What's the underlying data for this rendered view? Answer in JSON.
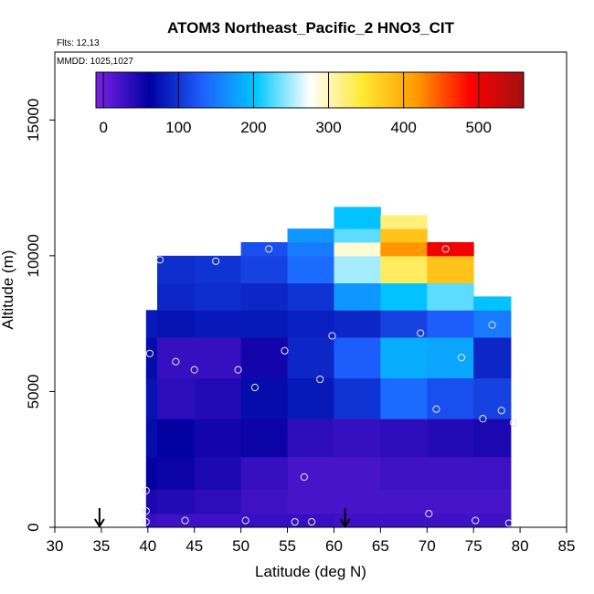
{
  "chart_data": {
    "type": "heatmap",
    "title": "ATOM3 Northeast_Pacific_2 HNO3_CIT",
    "annotations": [
      "Flts: 12,13",
      "MMDD: 1025,1027"
    ],
    "xlabel": "Latitude (deg N)",
    "ylabel": "Altitude (m)",
    "xlim": [
      30,
      85
    ],
    "ylim": [
      0,
      17500
    ],
    "x_ticks": [
      30,
      35,
      40,
      45,
      50,
      55,
      60,
      65,
      70,
      75,
      80,
      85
    ],
    "y_ticks": [
      0,
      5000,
      10000,
      15000
    ],
    "grid": false,
    "colorbar": {
      "ticks": [
        0,
        100,
        200,
        300,
        400,
        500
      ],
      "range": [
        -10,
        560
      ],
      "placement": "top-inside",
      "colors": [
        "#7a22e8",
        "#0000a0",
        "#1e60ff",
        "#00c8ff",
        "#ffffff",
        "#ffe830",
        "#ff9a00",
        "#ff0000",
        "#a01010"
      ]
    },
    "arrows_at_latitude": [
      34.8,
      61.2
    ],
    "columns": [
      {
        "x0": 39.8,
        "x1": 41.0,
        "rows": [
          [
            0,
            500,
            30
          ],
          [
            500,
            1400,
            45
          ],
          [
            1400,
            2600,
            60
          ],
          [
            2600,
            4000,
            70
          ],
          [
            4000,
            5500,
            75
          ],
          [
            5500,
            7000,
            70
          ],
          [
            7000,
            8000,
            80
          ]
        ]
      },
      {
        "x0": 41.0,
        "x1": 45.0,
        "rows": [
          [
            0,
            500,
            25
          ],
          [
            500,
            1400,
            40
          ],
          [
            1400,
            2600,
            55
          ],
          [
            2600,
            4000,
            60
          ],
          [
            4000,
            5500,
            35
          ],
          [
            5500,
            7000,
            30
          ],
          [
            7000,
            8000,
            75
          ],
          [
            8000,
            9000,
            90
          ],
          [
            9000,
            10000,
            95
          ]
        ]
      },
      {
        "x0": 45.0,
        "x1": 50.0,
        "rows": [
          [
            0,
            500,
            25
          ],
          [
            500,
            1400,
            35
          ],
          [
            1400,
            2600,
            45
          ],
          [
            2600,
            4000,
            50
          ],
          [
            4000,
            5500,
            40
          ],
          [
            5500,
            7000,
            30
          ],
          [
            7000,
            8000,
            80
          ],
          [
            8000,
            9000,
            95
          ],
          [
            9000,
            10000,
            100
          ]
        ]
      },
      {
        "x0": 50.0,
        "x1": 55.0,
        "rows": [
          [
            0,
            500,
            30
          ],
          [
            500,
            1400,
            25
          ],
          [
            1400,
            2600,
            30
          ],
          [
            2600,
            4000,
            55
          ],
          [
            4000,
            5500,
            70
          ],
          [
            5500,
            7000,
            50
          ],
          [
            7000,
            8000,
            80
          ],
          [
            8000,
            9000,
            90
          ],
          [
            9000,
            10000,
            110
          ],
          [
            10000,
            10500,
            120
          ]
        ]
      },
      {
        "x0": 55.0,
        "x1": 60.0,
        "rows": [
          [
            0,
            500,
            30
          ],
          [
            500,
            1400,
            20
          ],
          [
            1400,
            2600,
            20
          ],
          [
            2600,
            4000,
            35
          ],
          [
            4000,
            5500,
            80
          ],
          [
            5500,
            7000,
            90
          ],
          [
            7000,
            8000,
            85
          ],
          [
            8000,
            9000,
            100
          ],
          [
            9000,
            10000,
            140
          ],
          [
            10000,
            10500,
            150
          ],
          [
            10500,
            11000,
            170
          ]
        ]
      },
      {
        "x0": 60.0,
        "x1": 65.0,
        "rows": [
          [
            0,
            500,
            25
          ],
          [
            500,
            1400,
            20
          ],
          [
            1400,
            2600,
            20
          ],
          [
            2600,
            4000,
            30
          ],
          [
            4000,
            5500,
            100
          ],
          [
            5500,
            7000,
            130
          ],
          [
            7000,
            8000,
            90
          ],
          [
            8000,
            9000,
            170
          ],
          [
            9000,
            10000,
            250
          ],
          [
            10000,
            10500,
            290
          ],
          [
            10500,
            11000,
            230
          ],
          [
            11000,
            11800,
            200
          ]
        ]
      },
      {
        "x0": 65.0,
        "x1": 70.0,
        "rows": [
          [
            0,
            500,
            25
          ],
          [
            500,
            1400,
            20
          ],
          [
            1400,
            2600,
            25
          ],
          [
            2600,
            4000,
            35
          ],
          [
            4000,
            5500,
            140
          ],
          [
            5500,
            7000,
            185
          ],
          [
            7000,
            8000,
            110
          ],
          [
            8000,
            9000,
            200
          ],
          [
            9000,
            10000,
            330
          ],
          [
            10000,
            10500,
            420
          ],
          [
            10500,
            11000,
            380
          ],
          [
            11000,
            11500,
            320
          ]
        ]
      },
      {
        "x0": 70.0,
        "x1": 75.0,
        "rows": [
          [
            0,
            500,
            25
          ],
          [
            500,
            1400,
            20
          ],
          [
            1400,
            2600,
            25
          ],
          [
            2600,
            4000,
            40
          ],
          [
            4000,
            5500,
            120
          ],
          [
            5500,
            7000,
            180
          ],
          [
            7000,
            8000,
            130
          ],
          [
            8000,
            9000,
            230
          ],
          [
            9000,
            10000,
            380
          ],
          [
            10000,
            10500,
            500
          ]
        ]
      },
      {
        "x0": 75.0,
        "x1": 79.0,
        "rows": [
          [
            0,
            500,
            25
          ],
          [
            500,
            1400,
            20
          ],
          [
            1400,
            2600,
            25
          ],
          [
            2600,
            4000,
            45
          ],
          [
            4000,
            5500,
            110
          ],
          [
            5500,
            7000,
            90
          ],
          [
            7000,
            8000,
            150
          ],
          [
            8000,
            8500,
            200
          ]
        ]
      }
    ],
    "sample_points": [
      [
        41.3,
        9850
      ],
      [
        47.3,
        9800
      ],
      [
        53.0,
        10250
      ],
      [
        72.0,
        10250
      ],
      [
        40.2,
        6400
      ],
      [
        43.0,
        6100
      ],
      [
        45.0,
        5800
      ],
      [
        49.7,
        5800
      ],
      [
        54.7,
        6500
      ],
      [
        59.8,
        7050
      ],
      [
        69.3,
        7150
      ],
      [
        73.7,
        6250
      ],
      [
        77.0,
        7450
      ],
      [
        51.5,
        5150
      ],
      [
        58.5,
        5450
      ],
      [
        71.0,
        4350
      ],
      [
        76.0,
        4000
      ],
      [
        78.0,
        4300
      ],
      [
        79.3,
        3850
      ],
      [
        39.8,
        1350
      ],
      [
        56.8,
        1850
      ],
      [
        39.8,
        600
      ],
      [
        70.2,
        500
      ],
      [
        39.8,
        200
      ],
      [
        44.0,
        250
      ],
      [
        50.5,
        250
      ],
      [
        55.8,
        200
      ],
      [
        57.6,
        200
      ],
      [
        75.2,
        250
      ],
      [
        78.8,
        150
      ]
    ]
  }
}
